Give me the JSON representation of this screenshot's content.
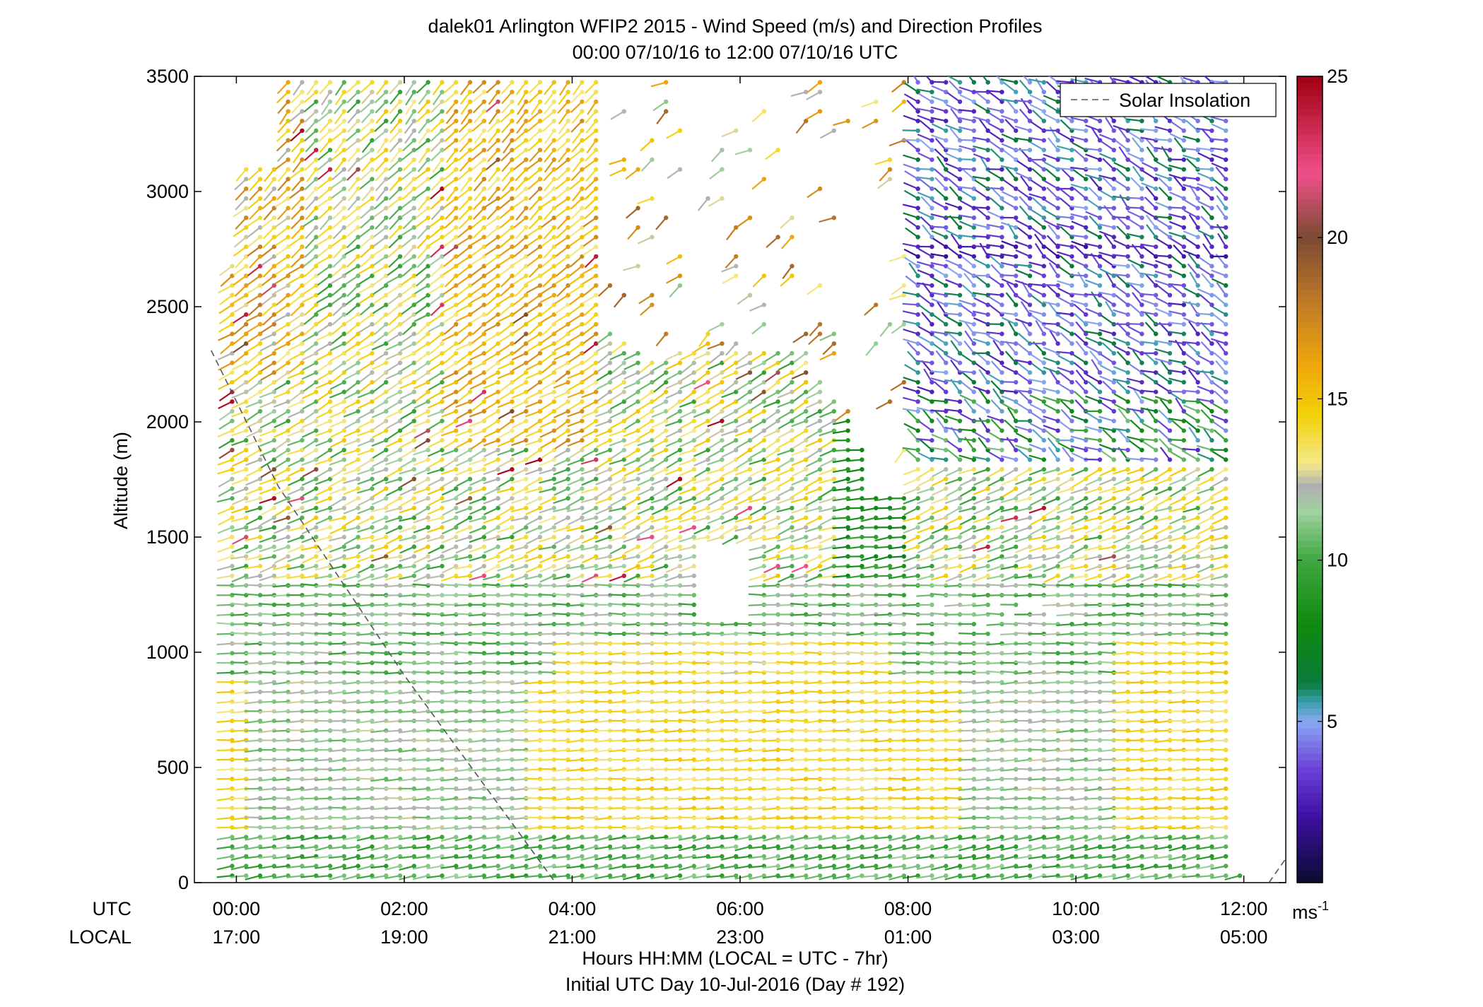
{
  "chart_data": {
    "type": "wind-barb-profile",
    "title": "dalek01 Arlington WFIP2 2015 - Wind Speed (m/s) and Direction Profiles",
    "subtitle": "00:00 07/10/16 to 12:00 07/10/16  UTC",
    "ylabel": "Altitude (m)",
    "xlabel": "Hours HH:MM  (LOCAL = UTC - 7hr)",
    "xlabel2": "Initial UTC Day 10-Jul-2016 (Day # 192)",
    "utc_label": "UTC",
    "local_label": "LOCAL",
    "x_range_hours": [
      -0.5,
      12.5
    ],
    "ylim": [
      0,
      3500
    ],
    "yticks": [
      0,
      500,
      1000,
      1500,
      2000,
      2500,
      3000,
      3500
    ],
    "xticks_hours": [
      0,
      2,
      4,
      6,
      8,
      10,
      12
    ],
    "xtick_labels_utc": [
      "00:00",
      "02:00",
      "04:00",
      "06:00",
      "08:00",
      "10:00",
      "12:00"
    ],
    "xtick_labels_local": [
      "17:00",
      "19:00",
      "21:00",
      "23:00",
      "01:00",
      "03:00",
      "05:00"
    ],
    "legend": {
      "entry": "Solar Insolation",
      "position": "top-right",
      "style": "dashed"
    },
    "colorbar": {
      "label": "ms",
      "label_superscript": "-1",
      "range": [
        0,
        25
      ],
      "tick_values": [
        5,
        10,
        15,
        20,
        25
      ],
      "tick_labels": [
        "5",
        "10",
        "15",
        "20",
        "25"
      ],
      "colormap_stops": [
        {
          "v": 0,
          "c": "#0b0b30"
        },
        {
          "v": 2,
          "c": "#3b0fa0"
        },
        {
          "v": 3.5,
          "c": "#6a3fd8"
        },
        {
          "v": 5,
          "c": "#8aa8f2"
        },
        {
          "v": 5.6,
          "c": "#3a9fb0"
        },
        {
          "v": 6.2,
          "c": "#0a7a3a"
        },
        {
          "v": 8,
          "c": "#0f8a0f"
        },
        {
          "v": 10,
          "c": "#3fa63f"
        },
        {
          "v": 11.5,
          "c": "#9fd29f"
        },
        {
          "v": 12.3,
          "c": "#b0b0b0"
        },
        {
          "v": 13,
          "c": "#f5e98a"
        },
        {
          "v": 14.5,
          "c": "#f2d20a"
        },
        {
          "v": 16,
          "c": "#f0a80a"
        },
        {
          "v": 18,
          "c": "#c07a28"
        },
        {
          "v": 20,
          "c": "#7a4a32"
        },
        {
          "v": 22,
          "c": "#f0508a"
        },
        {
          "v": 25,
          "c": "#a00010"
        }
      ]
    },
    "solar_insolation_line": [
      [
        -0.3,
        2310
      ],
      [
        0.5,
        1720
      ],
      [
        2.0,
        900
      ],
      [
        3.8,
        0
      ]
    ],
    "solar_insolation_line_2": [
      [
        12.3,
        0
      ],
      [
        12.55,
        130
      ]
    ],
    "profiles_summary": [
      {
        "altitude_range_m": [
          0,
          200
        ],
        "speed_ms": 10,
        "direction_deg": 255
      },
      {
        "altitude_range_m": [
          250,
          850
        ],
        "speed_ms": 12.5,
        "direction_deg": 265
      },
      {
        "altitude_range_m": [
          900,
          1300
        ],
        "speed_ms": 10.5,
        "direction_deg": 268
      },
      {
        "altitude_range_m": [
          1300,
          2800
        ],
        "speed_ms": 11,
        "direction_deg": 225
      },
      {
        "altitude_range_m": [
          2000,
          3500
        ],
        "speed_ms": 4,
        "direction_deg": 290,
        "time_range_h": [
          8,
          12
        ]
      }
    ]
  }
}
